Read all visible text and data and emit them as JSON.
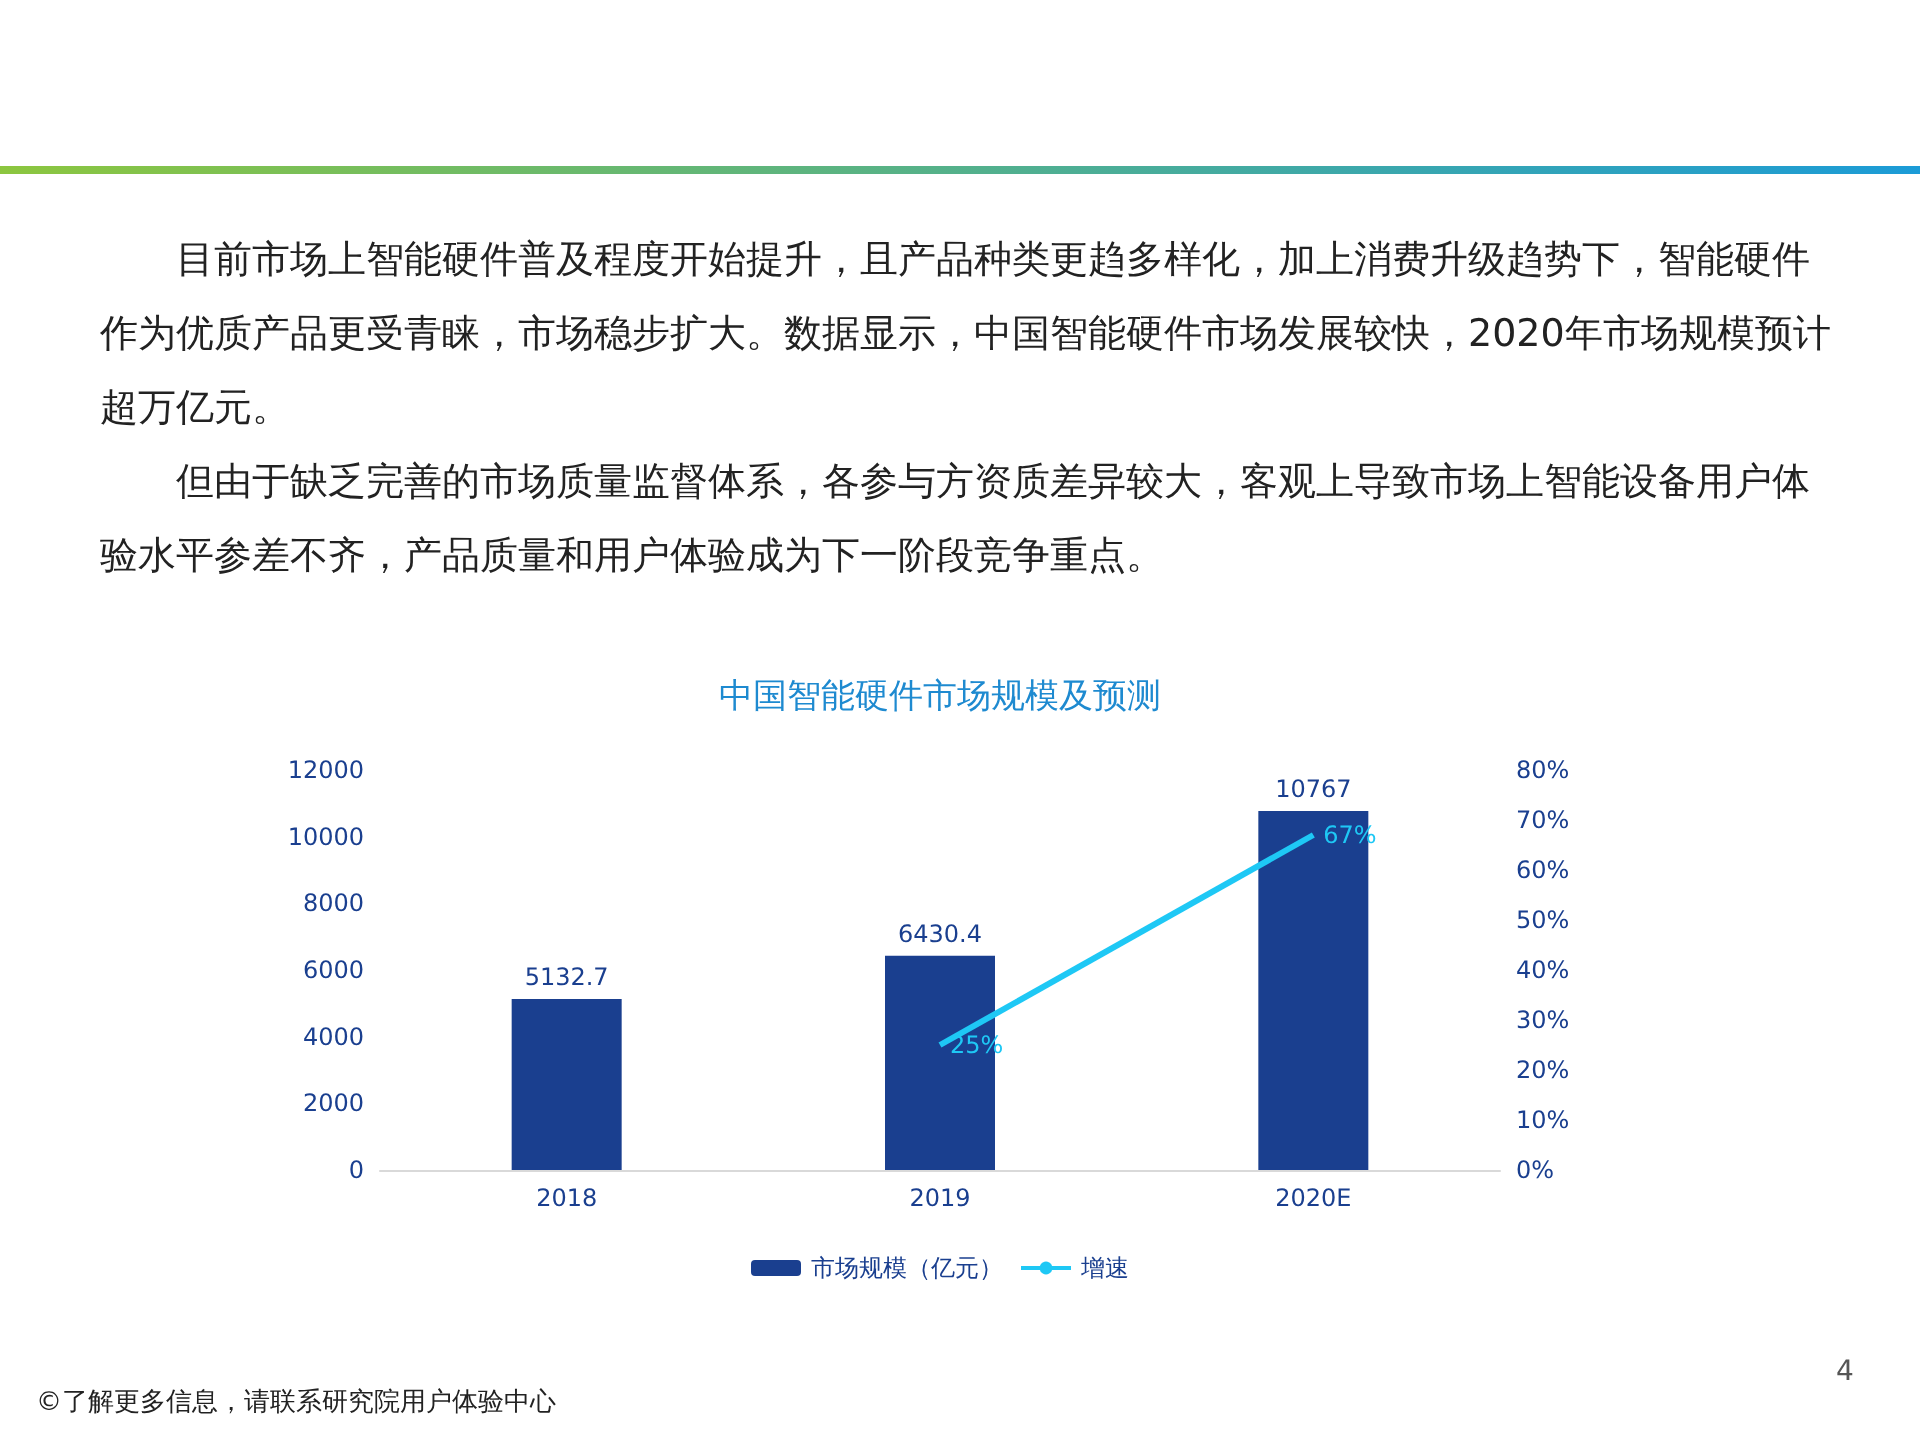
{
  "chart_data": {
    "type": "bar",
    "title": "中国智能硬件市场规模及预测",
    "annotations": [
      "目前市场上智能硬件普及程度开始提升，且产品种类更趋多样化，加上消费升级趋势下，智能硬件作为优质产品更受青睐，市场稳步扩大。数据显示，中国智能硬件市场发展较快，2020年市场规模预计超万亿元。",
      "但由于缺乏完善的市场质量监督体系，各参与方资质差异较大，客观上导致市场上智能设备用户体验水平参差不齐，产品质量和用户体验成为下一阶段竞争重点。",
      "©了解更多信息，请联系研究院用户体验中心",
      "4"
    ],
    "categories": [
      "2018",
      "2019",
      "2020E"
    ],
    "series": [
      {
        "name": "市场规模（亿元）",
        "color": "#1a3f8f",
        "values": [
          5132.7,
          6430.4,
          10767
        ],
        "value_labels": [
          "5132.7",
          "6430.4",
          "10767"
        ]
      },
      {
        "name": "增速",
        "type": "line",
        "axis": "y2",
        "color": "#1ec8f5",
        "values": [
          null,
          25,
          67
        ],
        "value_labels": [
          null,
          "25%",
          "67%"
        ]
      }
    ],
    "ylim": [
      0,
      12000
    ],
    "yticks": [
      0,
      2000,
      4000,
      6000,
      8000,
      10000,
      12000
    ],
    "y2lim": [
      0,
      80
    ],
    "y2ticks": [
      {
        "value": 0,
        "label": "0%"
      },
      {
        "value": 10,
        "label": "10%"
      },
      {
        "value": 20,
        "label": "20%"
      },
      {
        "value": 30,
        "label": "30%"
      },
      {
        "value": 40,
        "label": "40%"
      },
      {
        "value": 50,
        "label": "50%"
      },
      {
        "value": 60,
        "label": "60%"
      },
      {
        "value": 70,
        "label": "70%"
      },
      {
        "value": 80,
        "label": "80%"
      }
    ],
    "grid": false,
    "legend": "bottom",
    "marker": "none"
  }
}
